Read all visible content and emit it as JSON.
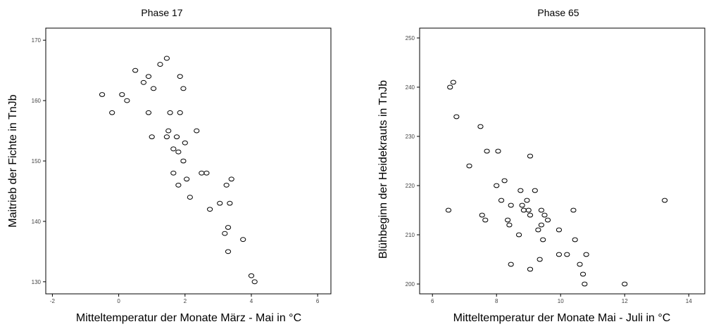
{
  "chart_data": [
    {
      "type": "scatter",
      "title": "Phase 17",
      "xlabel": "Mitteltemperatur der Monate März - Mai in °C",
      "ylabel": "Maitrieb der Fichte in TnJb",
      "xlim": [
        -2.2,
        6.4
      ],
      "ylim": [
        128,
        172
      ],
      "xticks": [
        "-2",
        "0",
        "2",
        "4",
        "6"
      ],
      "yticks": [
        "130",
        "140",
        "150",
        "160",
        "170"
      ],
      "points": [
        {
          "x": -0.5,
          "y": 161
        },
        {
          "x": -0.2,
          "y": 158
        },
        {
          "x": 0.1,
          "y": 161
        },
        {
          "x": 0.25,
          "y": 160
        },
        {
          "x": 0.5,
          "y": 165
        },
        {
          "x": 0.75,
          "y": 163
        },
        {
          "x": 0.9,
          "y": 164
        },
        {
          "x": 1.05,
          "y": 162
        },
        {
          "x": 0.9,
          "y": 158
        },
        {
          "x": 1.0,
          "y": 154
        },
        {
          "x": 1.25,
          "y": 166
        },
        {
          "x": 1.45,
          "y": 167
        },
        {
          "x": 1.45,
          "y": 154
        },
        {
          "x": 1.5,
          "y": 155
        },
        {
          "x": 1.55,
          "y": 158
        },
        {
          "x": 1.65,
          "y": 152
        },
        {
          "x": 1.75,
          "y": 154
        },
        {
          "x": 1.8,
          "y": 151.5
        },
        {
          "x": 1.85,
          "y": 158
        },
        {
          "x": 1.85,
          "y": 164
        },
        {
          "x": 1.95,
          "y": 162
        },
        {
          "x": 1.95,
          "y": 150
        },
        {
          "x": 2.0,
          "y": 153
        },
        {
          "x": 1.65,
          "y": 148
        },
        {
          "x": 2.05,
          "y": 147
        },
        {
          "x": 1.8,
          "y": 146
        },
        {
          "x": 2.15,
          "y": 144
        },
        {
          "x": 2.35,
          "y": 155
        },
        {
          "x": 2.5,
          "y": 148
        },
        {
          "x": 2.65,
          "y": 148
        },
        {
          "x": 2.75,
          "y": 142
        },
        {
          "x": 3.05,
          "y": 143
        },
        {
          "x": 3.2,
          "y": 138
        },
        {
          "x": 3.3,
          "y": 139
        },
        {
          "x": 3.25,
          "y": 146
        },
        {
          "x": 3.3,
          "y": 135
        },
        {
          "x": 3.35,
          "y": 143
        },
        {
          "x": 3.4,
          "y": 147
        },
        {
          "x": 3.75,
          "y": 137
        },
        {
          "x": 4.0,
          "y": 131
        },
        {
          "x": 4.1,
          "y": 130
        }
      ]
    },
    {
      "type": "scatter",
      "title": "Phase 65",
      "xlabel": "Mitteltemperatur der Monate Mai - Juli in °C",
      "ylabel": "Blühbeginn der Heidekrauts in TnJb",
      "xlim": [
        5.6,
        14.5
      ],
      "ylim": [
        198,
        252
      ],
      "xticks": [
        "6",
        "8",
        "10",
        "12",
        "14"
      ],
      "yticks": [
        "200",
        "210",
        "220",
        "230",
        "240",
        "250"
      ],
      "points": [
        {
          "x": 6.5,
          "y": 215
        },
        {
          "x": 6.55,
          "y": 240
        },
        {
          "x": 6.65,
          "y": 241
        },
        {
          "x": 6.75,
          "y": 234
        },
        {
          "x": 7.15,
          "y": 224
        },
        {
          "x": 7.5,
          "y": 232
        },
        {
          "x": 7.55,
          "y": 214
        },
        {
          "x": 7.65,
          "y": 213
        },
        {
          "x": 7.7,
          "y": 227
        },
        {
          "x": 8.05,
          "y": 227
        },
        {
          "x": 8.0,
          "y": 220
        },
        {
          "x": 8.15,
          "y": 217
        },
        {
          "x": 8.25,
          "y": 221
        },
        {
          "x": 8.35,
          "y": 213
        },
        {
          "x": 8.4,
          "y": 212
        },
        {
          "x": 8.45,
          "y": 216
        },
        {
          "x": 8.45,
          "y": 204
        },
        {
          "x": 8.7,
          "y": 210
        },
        {
          "x": 8.75,
          "y": 219
        },
        {
          "x": 8.8,
          "y": 216
        },
        {
          "x": 8.85,
          "y": 215
        },
        {
          "x": 8.95,
          "y": 217
        },
        {
          "x": 9.0,
          "y": 215
        },
        {
          "x": 9.05,
          "y": 214
        },
        {
          "x": 9.05,
          "y": 226
        },
        {
          "x": 9.05,
          "y": 203
        },
        {
          "x": 9.2,
          "y": 219
        },
        {
          "x": 9.3,
          "y": 211
        },
        {
          "x": 9.35,
          "y": 205
        },
        {
          "x": 9.4,
          "y": 215
        },
        {
          "x": 9.4,
          "y": 212
        },
        {
          "x": 9.45,
          "y": 209
        },
        {
          "x": 9.5,
          "y": 214
        },
        {
          "x": 9.6,
          "y": 213
        },
        {
          "x": 9.95,
          "y": 211
        },
        {
          "x": 9.95,
          "y": 206
        },
        {
          "x": 10.2,
          "y": 206
        },
        {
          "x": 10.4,
          "y": 215
        },
        {
          "x": 10.45,
          "y": 209
        },
        {
          "x": 10.6,
          "y": 204
        },
        {
          "x": 10.7,
          "y": 202
        },
        {
          "x": 10.75,
          "y": 200
        },
        {
          "x": 10.8,
          "y": 206
        },
        {
          "x": 12.0,
          "y": 200
        },
        {
          "x": 13.25,
          "y": 217
        }
      ]
    }
  ]
}
